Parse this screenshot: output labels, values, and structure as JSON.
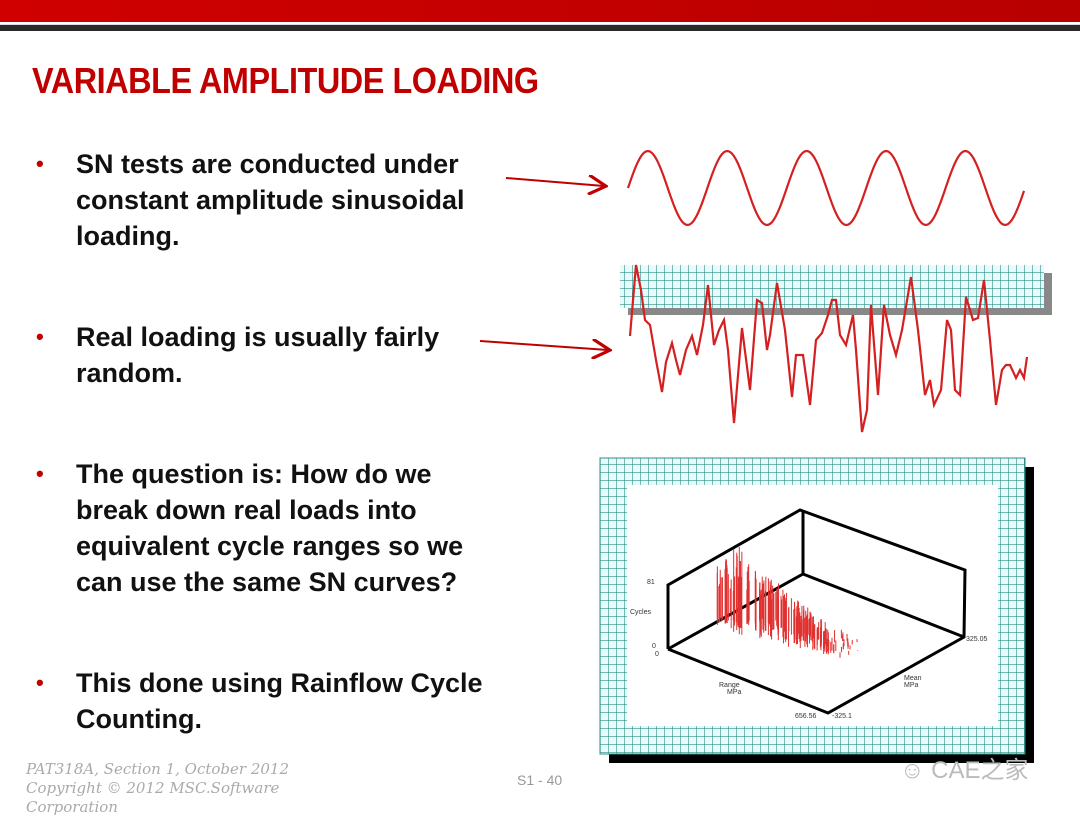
{
  "slide": {
    "title": "VARIABLE AMPLITUDE LOADING",
    "bullets": [
      "SN tests are conducted under\nconstant amplitude sinusoidal\nloading.",
      "Real loading is usually fairly\nrandom.",
      "The question is: How do we\nbreak down real loads into\nequivalent cycle ranges so we\ncan use the same SN curves?",
      "This done using Rainflow Cycle\nCounting."
    ],
    "bullet_symbol": "•",
    "accent_color": "#c00000"
  },
  "histogram_plot": {
    "z_axis_label": "Cycles",
    "z_max": "81",
    "z_min": "0",
    "origin_label": "0",
    "range_axis_label": "Range\nMPa",
    "range_max": "656.56",
    "mean_axis_label": "Mean\nMPa",
    "mean_min": "-325.1",
    "mean_max": "325.05"
  },
  "footer": {
    "line1": "PAT318A, Section 1, October 2012",
    "line2": "Copyright © 2012 MSC.Software",
    "line3": "Corporation",
    "page": "S1 - 40"
  },
  "watermark": "CAE之家"
}
